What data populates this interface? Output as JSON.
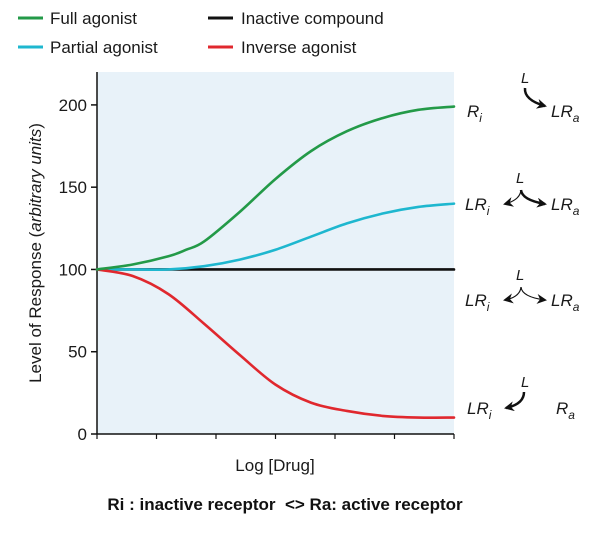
{
  "chart_data": {
    "type": "line",
    "title": "",
    "xlabel": "Log [Drug]",
    "ylabel_prefix": "Level of Response (",
    "ylabel_italic": "arbitrary units",
    "ylabel_suffix": ")",
    "ylim": [
      0,
      220
    ],
    "yticks": [
      0,
      50,
      100,
      150,
      200
    ],
    "xlim": [
      0,
      10
    ],
    "grid": false,
    "legend_position": "top",
    "series": [
      {
        "name": "Full agonist",
        "color": "#239a48",
        "x": [
          0,
          1,
          2,
          2.5,
          3,
          4,
          5,
          6,
          7,
          8,
          9,
          10
        ],
        "y": [
          100,
          103,
          108,
          112,
          117,
          135,
          155,
          172,
          184,
          192,
          197,
          199
        ]
      },
      {
        "name": "Inactive compound",
        "color": "#111111",
        "x": [
          0,
          10
        ],
        "y": [
          100,
          100
        ]
      },
      {
        "name": "Partial agonist",
        "color": "#1eb7cf",
        "x": [
          0,
          1,
          2,
          3,
          4,
          5,
          6,
          7,
          8,
          9,
          10
        ],
        "y": [
          100,
          100,
          100,
          102,
          106,
          112,
          120,
          128,
          134,
          138,
          140
        ]
      },
      {
        "name": "Inverse agonist",
        "color": "#e0282e",
        "x": [
          0,
          1,
          2,
          3,
          4,
          5,
          6,
          7,
          8,
          9,
          10
        ],
        "y": [
          100,
          96,
          85,
          67,
          48,
          30,
          19,
          14,
          11,
          10,
          10
        ]
      }
    ],
    "caption": "Ri : inactive receptor  <> Ra: active receptor",
    "schemes": [
      {
        "left_base": "R",
        "left_sub": "i",
        "L": "L",
        "right_base": "LR",
        "right_sub": "a"
      },
      {
        "left_base": "LR",
        "left_sub": "i",
        "L": "L",
        "right_base": "LR",
        "right_sub": "a"
      },
      {
        "left_base": "LR",
        "left_sub": "i",
        "L": "L",
        "right_base": "LR",
        "right_sub": "a"
      },
      {
        "left_base": "LR",
        "left_sub": "i",
        "L": "L",
        "right_base": "R",
        "right_sub": "a"
      }
    ]
  }
}
